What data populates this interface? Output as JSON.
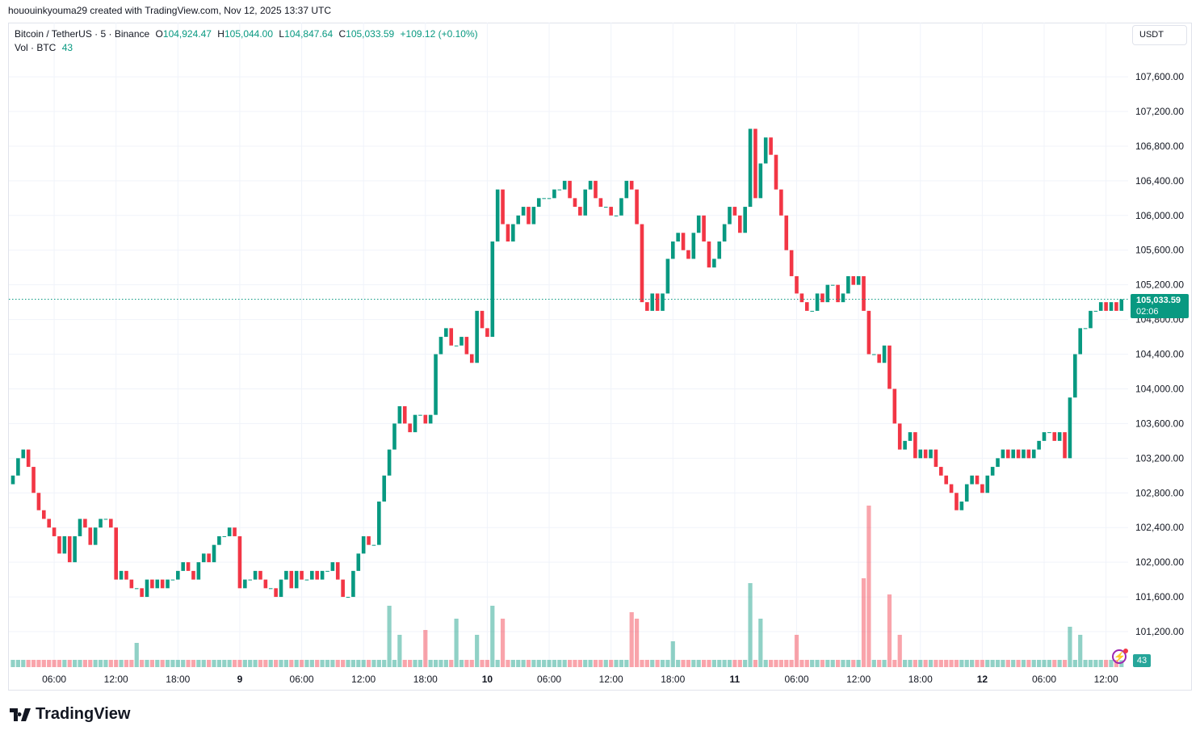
{
  "credit": "hououinkyouma29 created with TradingView.com, Nov 12, 2025 13:37 UTC",
  "legend": {
    "symbol": "Bitcoin / TetherUS · 5 · Binance",
    "o_label": "O",
    "o": "104,924.47",
    "h_label": "H",
    "h": "105,044.00",
    "l_label": "L",
    "l": "104,847.64",
    "c_label": "C",
    "c": "105,033.59",
    "change": "+109.12 (+0.10%)",
    "vol_label": "Vol · BTC",
    "vol": "43"
  },
  "currency_button": "USDT",
  "last_price_label": "105,033.59",
  "countdown": "02:06",
  "volume_label": "43",
  "logo": "TradingView",
  "colors": {
    "up": "#089981",
    "down": "#F23645",
    "last_price": "#089981",
    "alert_icon": "#9c27b0"
  },
  "chart_data": {
    "type": "candlestick",
    "title": "",
    "ylim": [
      100790,
      108225
    ],
    "y_ticks": [
      101200,
      101600,
      102000,
      102400,
      102800,
      103200,
      103600,
      104000,
      104400,
      104800,
      105200,
      105600,
      106000,
      106400,
      106800,
      107200,
      107600
    ],
    "y_tick_labels": [
      "101,200.00",
      "101,600.00",
      "102,000.00",
      "102,400.00",
      "102,800.00",
      "103,200.00",
      "103,600.00",
      "104,000.00",
      "104,400.00",
      "104,800.00",
      "105,200.00",
      "105,600.00",
      "106,000.00",
      "106,400.00",
      "106,800.00",
      "107,200.00",
      "107,600.00"
    ],
    "x_ticks": [
      {
        "i": 8,
        "label": "06:00"
      },
      {
        "i": 20,
        "label": "12:00"
      },
      {
        "i": 32,
        "label": "18:00"
      },
      {
        "i": 44,
        "label": "9",
        "bold": true
      },
      {
        "i": 56,
        "label": "06:00"
      },
      {
        "i": 68,
        "label": "12:00"
      },
      {
        "i": 80,
        "label": "18:00"
      },
      {
        "i": 92,
        "label": "10",
        "bold": true
      },
      {
        "i": 104,
        "label": "06:00"
      },
      {
        "i": 116,
        "label": "12:00"
      },
      {
        "i": 128,
        "label": "18:00"
      },
      {
        "i": 140,
        "label": "11",
        "bold": true
      },
      {
        "i": 152,
        "label": "06:00"
      },
      {
        "i": 164,
        "label": "12:00"
      },
      {
        "i": 176,
        "label": "18:00"
      },
      {
        "i": 188,
        "label": "12",
        "bold": true
      },
      {
        "i": 200,
        "label": "06:00"
      },
      {
        "i": 212,
        "label": "12:00"
      }
    ],
    "first_open": 102900,
    "closes": [
      103000,
      103200,
      103300,
      103100,
      102800,
      102600,
      102500,
      102400,
      102300,
      102100,
      102300,
      102000,
      102300,
      102500,
      102400,
      102200,
      102400,
      102500,
      102500,
      102400,
      101800,
      101900,
      101800,
      101700,
      101700,
      101600,
      101800,
      101700,
      101800,
      101700,
      101800,
      101800,
      101900,
      102000,
      101900,
      101800,
      102000,
      102100,
      102000,
      102200,
      102300,
      102300,
      102400,
      102300,
      101700,
      101800,
      101800,
      101900,
      101800,
      101700,
      101700,
      101600,
      101800,
      101900,
      101700,
      101900,
      101800,
      101800,
      101900,
      101800,
      101900,
      101900,
      102000,
      101800,
      101600,
      101600,
      101900,
      102100,
      102300,
      102200,
      102200,
      102700,
      103000,
      103300,
      103600,
      103800,
      103600,
      103500,
      103700,
      103700,
      103600,
      103700,
      104400,
      104600,
      104700,
      104500,
      104500,
      104600,
      104400,
      104300,
      104900,
      104700,
      104600,
      105700,
      106300,
      105900,
      105700,
      105900,
      106000,
      106100,
      105900,
      106100,
      106200,
      106200,
      106200,
      106300,
      106300,
      106400,
      106200,
      106100,
      106000,
      106300,
      106400,
      106200,
      106100,
      106100,
      106000,
      106000,
      106200,
      106400,
      106300,
      105900,
      105000,
      104900,
      105100,
      104900,
      105100,
      105500,
      105700,
      105800,
      105600,
      105500,
      105800,
      106000,
      105700,
      105400,
      105500,
      105700,
      105900,
      106100,
      106000,
      105800,
      106100,
      107000,
      106200,
      106600,
      106900,
      106700,
      106300,
      106000,
      105600,
      105300,
      105100,
      105000,
      104900,
      104900,
      105100,
      105000,
      105200,
      105200,
      105000,
      105100,
      105300,
      105200,
      105300,
      104900,
      104400,
      104400,
      104300,
      104500,
      104000,
      103600,
      103300,
      103400,
      103500,
      103200,
      103300,
      103200,
      103300,
      103100,
      103000,
      102900,
      102800,
      102600,
      102700,
      102900,
      103000,
      102900,
      102800,
      103000,
      103100,
      103200,
      103300,
      103200,
      103300,
      103200,
      103300,
      103200,
      103300,
      103400,
      103500,
      103500,
      103400,
      103500,
      103200,
      103900,
      104400,
      104700,
      104700,
      104900,
      104900,
      105000,
      104900,
      105000,
      104900,
      105033.59
    ],
    "last_price": 105033.59,
    "volume": {
      "ylim": [
        0,
        1000
      ],
      "baseline": 45,
      "peaks": [
        [
          24,
          150
        ],
        [
          73,
          380
        ],
        [
          75,
          200
        ],
        [
          80,
          230
        ],
        [
          86,
          300
        ],
        [
          90,
          200
        ],
        [
          93,
          380
        ],
        [
          95,
          300
        ],
        [
          120,
          340
        ],
        [
          121,
          300
        ],
        [
          128,
          160
        ],
        [
          143,
          520
        ],
        [
          145,
          300
        ],
        [
          152,
          200
        ],
        [
          165,
          550
        ],
        [
          166,
          1000
        ],
        [
          170,
          450
        ],
        [
          172,
          200
        ],
        [
          205,
          250
        ],
        [
          207,
          200
        ],
        [
          215,
          43
        ]
      ]
    }
  }
}
